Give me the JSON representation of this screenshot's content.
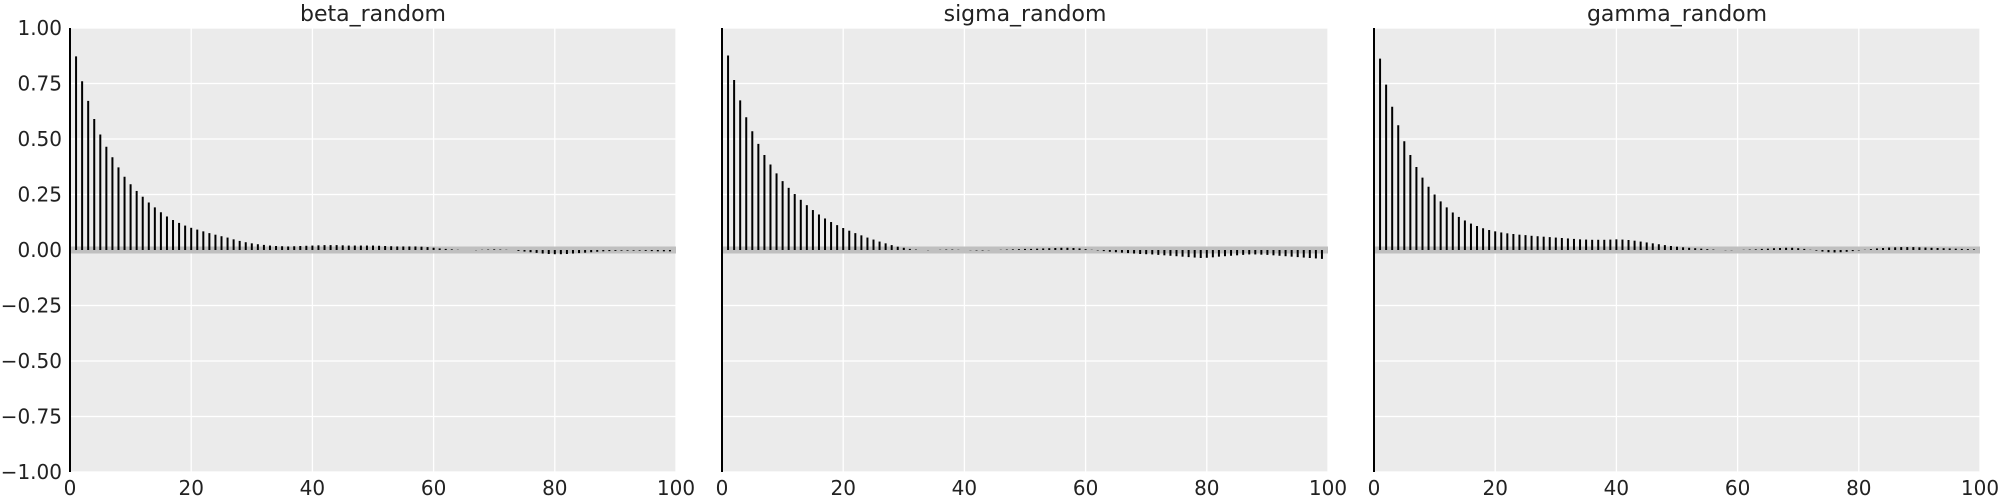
{
  "chart_data": [
    {
      "type": "bar",
      "title": "beta_random",
      "xlabel": "",
      "ylabel": "",
      "xlim": [
        0,
        100
      ],
      "ylim": [
        -1.0,
        1.0
      ],
      "grid": true,
      "x_ticks": [
        "0",
        "20",
        "40",
        "60",
        "80",
        "100"
      ],
      "y_ticks": [
        "1.00",
        "0.75",
        "0.50",
        "0.25",
        "0.00",
        "−0.25",
        "−0.50",
        "−0.75",
        "−1.00"
      ],
      "lags": [
        0,
        1,
        2,
        3,
        4,
        5,
        6,
        7,
        8,
        9,
        10,
        11,
        12,
        13,
        14,
        15,
        16,
        17,
        18,
        19,
        20,
        21,
        22,
        23,
        24,
        25,
        26,
        27,
        28,
        29,
        30,
        31,
        32,
        33,
        34,
        35,
        36,
        37,
        38,
        39,
        40,
        41,
        42,
        43,
        44,
        45,
        46,
        47,
        48,
        49,
        50,
        51,
        52,
        53,
        54,
        55,
        56,
        57,
        58,
        59,
        60,
        61,
        62,
        63,
        64,
        65,
        66,
        67,
        68,
        69,
        70,
        71,
        72,
        73,
        74,
        75,
        76,
        77,
        78,
        79,
        80,
        81,
        82,
        83,
        84,
        85,
        86,
        87,
        88,
        89,
        90,
        91,
        92,
        93,
        94,
        95,
        96,
        97,
        98,
        99
      ],
      "values": [
        1.0,
        0.872,
        0.76,
        0.672,
        0.59,
        0.52,
        0.465,
        0.418,
        0.372,
        0.33,
        0.296,
        0.266,
        0.24,
        0.214,
        0.192,
        0.17,
        0.151,
        0.135,
        0.122,
        0.11,
        0.1,
        0.092,
        0.084,
        0.076,
        0.069,
        0.062,
        0.056,
        0.048,
        0.041,
        0.035,
        0.03,
        0.026,
        0.023,
        0.02,
        0.018,
        0.017,
        0.016,
        0.017,
        0.018,
        0.019,
        0.02,
        0.021,
        0.022,
        0.022,
        0.022,
        0.021,
        0.02,
        0.02,
        0.02,
        0.02,
        0.02,
        0.019,
        0.018,
        0.017,
        0.016,
        0.016,
        0.016,
        0.016,
        0.015,
        0.013,
        0.01,
        0.007,
        0.005,
        0.003,
        0.001,
        0.0,
        0.0,
        -0.001,
        0.001,
        0.002,
        0.003,
        0.002,
        0.001,
        0.0,
        -0.004,
        -0.007,
        -0.01,
        -0.013,
        -0.016,
        -0.018,
        -0.019,
        -0.019,
        -0.018,
        -0.016,
        -0.014,
        -0.012,
        -0.01,
        -0.008,
        -0.006,
        -0.005,
        -0.004,
        -0.003,
        -0.003,
        -0.003,
        -0.003,
        -0.004,
        -0.005,
        -0.006,
        -0.006,
        -0.006
      ]
    },
    {
      "type": "bar",
      "title": "sigma_random",
      "xlabel": "",
      "ylabel": "",
      "xlim": [
        0,
        100
      ],
      "ylim": [
        -1.0,
        1.0
      ],
      "grid": true,
      "x_ticks": [
        "0",
        "20",
        "40",
        "60",
        "80",
        "100"
      ],
      "lags": [
        0,
        1,
        2,
        3,
        4,
        5,
        6,
        7,
        8,
        9,
        10,
        11,
        12,
        13,
        14,
        15,
        16,
        17,
        18,
        19,
        20,
        21,
        22,
        23,
        24,
        25,
        26,
        27,
        28,
        29,
        30,
        31,
        32,
        33,
        34,
        35,
        36,
        37,
        38,
        39,
        40,
        41,
        42,
        43,
        44,
        45,
        46,
        47,
        48,
        49,
        50,
        51,
        52,
        53,
        54,
        55,
        56,
        57,
        58,
        59,
        60,
        61,
        62,
        63,
        64,
        65,
        66,
        67,
        68,
        69,
        70,
        71,
        72,
        73,
        74,
        75,
        76,
        77,
        78,
        79,
        80,
        81,
        82,
        83,
        84,
        85,
        86,
        87,
        88,
        89,
        90,
        91,
        92,
        93,
        94,
        95,
        96,
        97,
        98,
        99
      ],
      "values": [
        1.0,
        0.876,
        0.766,
        0.674,
        0.598,
        0.535,
        0.478,
        0.428,
        0.385,
        0.345,
        0.31,
        0.28,
        0.252,
        0.226,
        0.202,
        0.18,
        0.16,
        0.142,
        0.126,
        0.112,
        0.099,
        0.087,
        0.076,
        0.066,
        0.056,
        0.047,
        0.038,
        0.03,
        0.022,
        0.015,
        0.01,
        0.005,
        0.002,
        0.0,
        -0.001,
        0.0,
        0.001,
        0.002,
        0.002,
        0.001,
        0.0,
        -0.001,
        -0.002,
        -0.002,
        -0.001,
        0.0,
        0.001,
        0.002,
        0.003,
        0.004,
        0.005,
        0.005,
        0.006,
        0.007,
        0.008,
        0.009,
        0.01,
        0.01,
        0.009,
        0.007,
        0.004,
        0.001,
        -0.002,
        -0.005,
        -0.008,
        -0.01,
        -0.012,
        -0.014,
        -0.016,
        -0.018,
        -0.019,
        -0.02,
        -0.022,
        -0.024,
        -0.026,
        -0.028,
        -0.03,
        -0.032,
        -0.034,
        -0.036,
        -0.035,
        -0.033,
        -0.03,
        -0.028,
        -0.026,
        -0.024,
        -0.022,
        -0.02,
        -0.02,
        -0.021,
        -0.022,
        -0.024,
        -0.026,
        -0.028,
        -0.03,
        -0.032,
        -0.034,
        -0.036,
        -0.038,
        -0.04
      ]
    },
    {
      "type": "bar",
      "title": "gamma_random",
      "xlabel": "",
      "ylabel": "",
      "xlim": [
        0,
        100
      ],
      "ylim": [
        -1.0,
        1.0
      ],
      "grid": true,
      "x_ticks": [
        "0",
        "20",
        "40",
        "60",
        "80",
        "100"
      ],
      "lags": [
        0,
        1,
        2,
        3,
        4,
        5,
        6,
        7,
        8,
        9,
        10,
        11,
        12,
        13,
        14,
        15,
        16,
        17,
        18,
        19,
        20,
        21,
        22,
        23,
        24,
        25,
        26,
        27,
        28,
        29,
        30,
        31,
        32,
        33,
        34,
        35,
        36,
        37,
        38,
        39,
        40,
        41,
        42,
        43,
        44,
        45,
        46,
        47,
        48,
        49,
        50,
        51,
        52,
        53,
        54,
        55,
        56,
        57,
        58,
        59,
        60,
        61,
        62,
        63,
        64,
        65,
        66,
        67,
        68,
        69,
        70,
        71,
        72,
        73,
        74,
        75,
        76,
        77,
        78,
        79,
        80,
        81,
        82,
        83,
        84,
        85,
        86,
        87,
        88,
        89,
        90,
        91,
        92,
        93,
        94,
        95,
        96,
        97,
        98,
        99
      ],
      "values": [
        1.0,
        0.862,
        0.745,
        0.645,
        0.562,
        0.49,
        0.428,
        0.374,
        0.326,
        0.285,
        0.25,
        0.219,
        0.192,
        0.169,
        0.149,
        0.133,
        0.119,
        0.108,
        0.098,
        0.09,
        0.084,
        0.079,
        0.075,
        0.072,
        0.069,
        0.067,
        0.064,
        0.062,
        0.06,
        0.058,
        0.056,
        0.054,
        0.052,
        0.05,
        0.048,
        0.047,
        0.046,
        0.046,
        0.046,
        0.047,
        0.048,
        0.047,
        0.045,
        0.042,
        0.038,
        0.034,
        0.03,
        0.026,
        0.022,
        0.018,
        0.015,
        0.012,
        0.01,
        0.008,
        0.006,
        0.004,
        0.002,
        0.0,
        -0.001,
        -0.001,
        0.0,
        0.001,
        0.002,
        0.003,
        0.005,
        0.006,
        0.008,
        0.009,
        0.01,
        0.01,
        0.008,
        0.005,
        0.001,
        -0.003,
        -0.007,
        -0.01,
        -0.011,
        -0.01,
        -0.008,
        -0.005,
        -0.002,
        0.001,
        0.004,
        0.007,
        0.009,
        0.011,
        0.012,
        0.013,
        0.013,
        0.013,
        0.012,
        0.011,
        0.01,
        0.009,
        0.008,
        0.007,
        0.006,
        0.005,
        0.004,
        0.003
      ]
    }
  ]
}
